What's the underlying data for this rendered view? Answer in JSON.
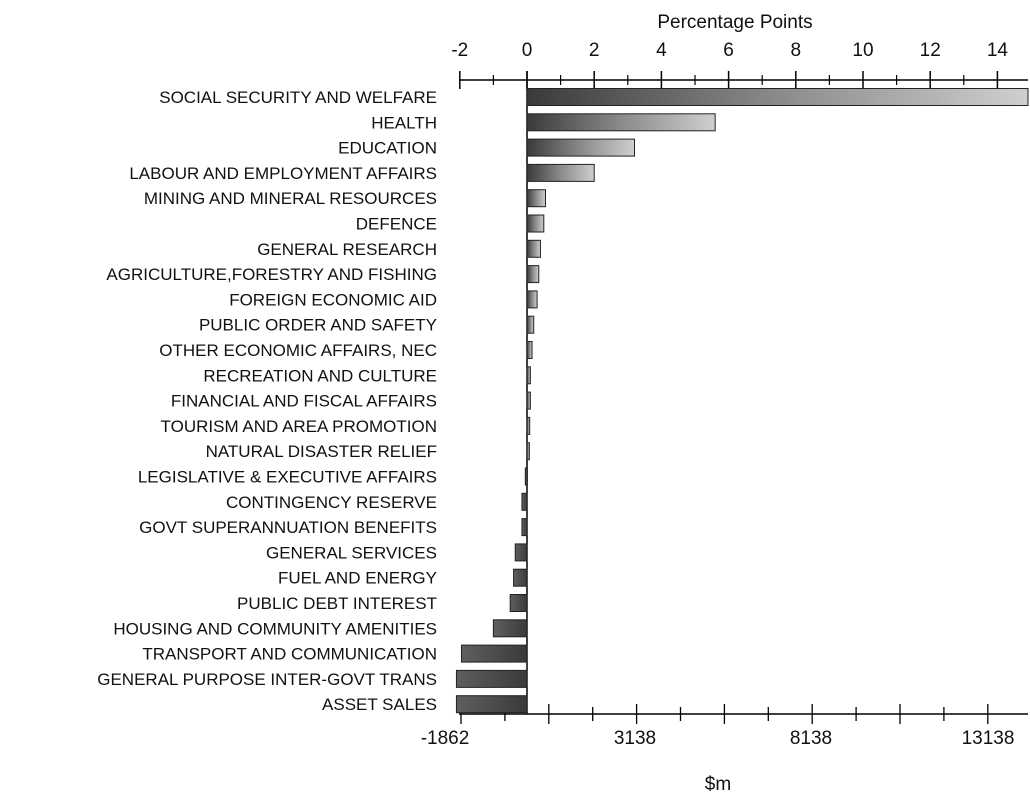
{
  "chart_data": {
    "type": "bar",
    "orientation": "horizontal",
    "top_axis": {
      "label": "Percentage Points",
      "range": [
        -2,
        14
      ],
      "ticks": [
        "-2",
        "0",
        "2",
        "4",
        "6",
        "8",
        "10",
        "12",
        "14"
      ]
    },
    "bottom_axis": {
      "label": "$m",
      "ticks": [
        "-1862",
        "3138",
        "8138",
        "13138"
      ]
    },
    "categories": [
      "SOCIAL SECURITY AND WELFARE",
      "HEALTH",
      "EDUCATION",
      "LABOUR AND EMPLOYMENT AFFAIRS",
      "MINING AND MINERAL RESOURCES",
      "DEFENCE",
      "GENERAL RESEARCH",
      "AGRICULTURE,FORESTRY AND  FISHING",
      "FOREIGN ECONOMIC AID",
      "PUBLIC ORDER AND SAFETY",
      "OTHER ECONOMIC AFFAIRS, NEC",
      "RECREATION AND CULTURE",
      "FINANCIAL AND FISCAL AFFAIRS",
      "TOURISM AND AREA PROMOTION",
      "NATURAL DISASTER RELIEF",
      "LEGISLATIVE & EXECUTIVE AFFAIRS",
      "CONTINGENCY RESERVE",
      "GOVT SUPERANNUATION BENEFITS",
      "GENERAL SERVICES",
      "FUEL AND ENERGY",
      "PUBLIC DEBT INTEREST",
      "HOUSING AND COMMUNITY AMENITIES",
      "TRANSPORT AND COMMUNICATION",
      "GENERAL PURPOSE INTER-GOVT TRANS",
      "ASSET SALES"
    ],
    "values": [
      15.1,
      5.6,
      3.2,
      2.0,
      0.55,
      0.5,
      0.4,
      0.35,
      0.3,
      0.2,
      0.15,
      0.1,
      0.1,
      0.08,
      0.07,
      -0.05,
      -0.15,
      -0.15,
      -0.35,
      -0.4,
      -0.5,
      -1.0,
      -1.95,
      -2.1,
      -2.1
    ],
    "grid": false,
    "legend": "none"
  }
}
